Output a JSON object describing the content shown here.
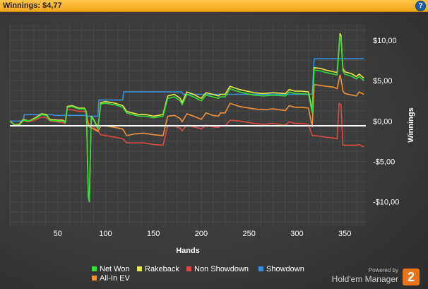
{
  "titlebar": {
    "label": "Winnings:",
    "value": "$4,77",
    "help_icon": "?"
  },
  "chart_data": {
    "type": "line",
    "xlabel": "Hands",
    "ylabel": "Winnings",
    "xlim": [
      0,
      372
    ],
    "ylim": [
      -13,
      12
    ],
    "grid": true,
    "legend_position": "bottom",
    "x_ticks": [
      "50",
      "100",
      "150",
      "200",
      "250",
      "300",
      "350"
    ],
    "y_ticks": [
      "$10,00",
      "$5,00",
      "$0,00",
      "-$5,00",
      "-$10,00"
    ],
    "x_tick_values": [
      50,
      100,
      150,
      200,
      250,
      300,
      350
    ],
    "y_tick_values": [
      10,
      5,
      0,
      -5,
      -10
    ],
    "series": [
      {
        "name": "Net Won",
        "color": "#33dd33",
        "points": [
          [
            0,
            0
          ],
          [
            5,
            -0.5
          ],
          [
            10,
            -0.5
          ],
          [
            14,
            0.1
          ],
          [
            20,
            0
          ],
          [
            28,
            0.4
          ],
          [
            33,
            0.8
          ],
          [
            38,
            0.7
          ],
          [
            42,
            0.1
          ],
          [
            50,
            0
          ],
          [
            55,
            0
          ],
          [
            58,
            -0.2
          ],
          [
            60,
            1.7
          ],
          [
            65,
            1.8
          ],
          [
            72,
            1.5
          ],
          [
            78,
            1.5
          ],
          [
            80,
            1.0
          ],
          [
            82,
            -9.5
          ],
          [
            83,
            -10
          ],
          [
            85,
            0.5
          ],
          [
            88,
            0
          ],
          [
            90,
            -0.5
          ],
          [
            92,
            -1
          ],
          [
            95,
            2.1
          ],
          [
            100,
            2.2
          ],
          [
            110,
            2.0
          ],
          [
            118,
            1.7
          ],
          [
            122,
            1.0
          ],
          [
            128,
            0.8
          ],
          [
            135,
            0.6
          ],
          [
            142,
            0.6
          ],
          [
            150,
            0.4
          ],
          [
            155,
            0.5
          ],
          [
            160,
            0.6
          ],
          [
            165,
            2.8
          ],
          [
            172,
            3.0
          ],
          [
            178,
            2.5
          ],
          [
            180,
            2.0
          ],
          [
            185,
            3.3
          ],
          [
            192,
            3.0
          ],
          [
            198,
            2.6
          ],
          [
            200,
            2.5
          ],
          [
            205,
            3.2
          ],
          [
            212,
            3.0
          ],
          [
            218,
            2.8
          ],
          [
            220,
            3.0
          ],
          [
            225,
            3.0
          ],
          [
            230,
            4.0
          ],
          [
            240,
            3.6
          ],
          [
            255,
            3.2
          ],
          [
            265,
            3.1
          ],
          [
            275,
            3.2
          ],
          [
            288,
            3.1
          ],
          [
            292,
            3.6
          ],
          [
            298,
            3.4
          ],
          [
            305,
            3.4
          ],
          [
            312,
            3.3
          ],
          [
            316,
            1.0
          ],
          [
            318,
            6.3
          ],
          [
            325,
            6.2
          ],
          [
            330,
            6.0
          ],
          [
            338,
            5.8
          ],
          [
            342,
            5.7
          ],
          [
            345,
            10.5
          ],
          [
            346,
            10.3
          ],
          [
            348,
            6.2
          ],
          [
            350,
            5.8
          ],
          [
            358,
            5.5
          ],
          [
            362,
            5.2
          ],
          [
            365,
            5.5
          ],
          [
            370,
            5.0
          ]
        ]
      },
      {
        "name": "Rakeback",
        "color": "#e8e84a",
        "points": [
          [
            0,
            0
          ],
          [
            5,
            -0.5
          ],
          [
            10,
            -0.4
          ],
          [
            14,
            0.2
          ],
          [
            20,
            0
          ],
          [
            28,
            0.5
          ],
          [
            33,
            0.9
          ],
          [
            38,
            0.8
          ],
          [
            42,
            0.2
          ],
          [
            50,
            0.1
          ],
          [
            55,
            0.1
          ],
          [
            58,
            -0.1
          ],
          [
            60,
            1.8
          ],
          [
            65,
            1.9
          ],
          [
            72,
            1.6
          ],
          [
            78,
            1.6
          ],
          [
            80,
            1.1
          ],
          [
            82,
            -9.4
          ],
          [
            83,
            -9.9
          ],
          [
            85,
            0.6
          ],
          [
            88,
            0.1
          ],
          [
            90,
            -0.4
          ],
          [
            92,
            -0.9
          ],
          [
            95,
            2.3
          ],
          [
            100,
            2.4
          ],
          [
            110,
            2.2
          ],
          [
            118,
            1.9
          ],
          [
            122,
            1.2
          ],
          [
            128,
            1.0
          ],
          [
            135,
            0.8
          ],
          [
            142,
            0.8
          ],
          [
            150,
            0.6
          ],
          [
            155,
            0.7
          ],
          [
            160,
            0.8
          ],
          [
            165,
            3.1
          ],
          [
            172,
            3.3
          ],
          [
            178,
            2.8
          ],
          [
            180,
            2.3
          ],
          [
            185,
            3.6
          ],
          [
            192,
            3.3
          ],
          [
            198,
            2.9
          ],
          [
            200,
            2.8
          ],
          [
            205,
            3.5
          ],
          [
            212,
            3.3
          ],
          [
            218,
            3.1
          ],
          [
            220,
            3.3
          ],
          [
            225,
            3.3
          ],
          [
            230,
            4.3
          ],
          [
            240,
            3.9
          ],
          [
            255,
            3.5
          ],
          [
            265,
            3.4
          ],
          [
            275,
            3.5
          ],
          [
            288,
            3.4
          ],
          [
            292,
            3.9
          ],
          [
            298,
            3.7
          ],
          [
            305,
            3.7
          ],
          [
            312,
            3.6
          ],
          [
            316,
            1.3
          ],
          [
            318,
            6.6
          ],
          [
            325,
            6.5
          ],
          [
            330,
            6.3
          ],
          [
            338,
            6.1
          ],
          [
            342,
            6.0
          ],
          [
            345,
            10.8
          ],
          [
            346,
            10.6
          ],
          [
            348,
            6.5
          ],
          [
            350,
            6.1
          ],
          [
            358,
            5.8
          ],
          [
            362,
            5.5
          ],
          [
            365,
            5.8
          ],
          [
            370,
            5.3
          ]
        ]
      },
      {
        "name": "Non Showdown",
        "color": "#e04848",
        "points": [
          [
            0,
            0
          ],
          [
            5,
            -0.4
          ],
          [
            10,
            -0.4
          ],
          [
            14,
            0
          ],
          [
            20,
            -0.1
          ],
          [
            28,
            0.2
          ],
          [
            33,
            0.5
          ],
          [
            38,
            0.4
          ],
          [
            42,
            0
          ],
          [
            50,
            -0.1
          ],
          [
            55,
            -0.2
          ],
          [
            58,
            -0.3
          ],
          [
            60,
            1.4
          ],
          [
            65,
            1.4
          ],
          [
            72,
            1.2
          ],
          [
            78,
            1.2
          ],
          [
            80,
            0.8
          ],
          [
            82,
            -0.3
          ],
          [
            84,
            -0.4
          ],
          [
            88,
            -0.8
          ],
          [
            92,
            -1.2
          ],
          [
            95,
            -1.7
          ],
          [
            100,
            -1.8
          ],
          [
            110,
            -2.0
          ],
          [
            118,
            -2.2
          ],
          [
            122,
            -2.7
          ],
          [
            130,
            -2.7
          ],
          [
            140,
            -2.7
          ],
          [
            150,
            -2.9
          ],
          [
            160,
            -3.0
          ],
          [
            165,
            -0.6
          ],
          [
            172,
            -0.6
          ],
          [
            178,
            -0.9
          ],
          [
            180,
            -1.2
          ],
          [
            185,
            -0.5
          ],
          [
            192,
            -0.7
          ],
          [
            198,
            -0.9
          ],
          [
            200,
            -1.0
          ],
          [
            205,
            -0.5
          ],
          [
            212,
            -0.7
          ],
          [
            218,
            -0.8
          ],
          [
            220,
            -0.6
          ],
          [
            225,
            -0.6
          ],
          [
            230,
            0.1
          ],
          [
            240,
            0
          ],
          [
            255,
            -0.3
          ],
          [
            265,
            -0.4
          ],
          [
            275,
            -0.3
          ],
          [
            288,
            -0.5
          ],
          [
            292,
            -0.1
          ],
          [
            298,
            -0.3
          ],
          [
            305,
            -0.3
          ],
          [
            312,
            -0.4
          ],
          [
            316,
            -1.8
          ],
          [
            318,
            -1.8
          ],
          [
            325,
            -1.9
          ],
          [
            330,
            -2.0
          ],
          [
            338,
            -2.1
          ],
          [
            342,
            -2.2
          ],
          [
            344,
            2.2
          ],
          [
            346,
            2.0
          ],
          [
            348,
            -3.0
          ],
          [
            350,
            -3.0
          ],
          [
            358,
            -3.0
          ],
          [
            362,
            -3.0
          ],
          [
            365,
            -2.9
          ],
          [
            370,
            -3.2
          ]
        ]
      },
      {
        "name": "Showdown",
        "color": "#3a8fd8",
        "points": [
          [
            0,
            0
          ],
          [
            14,
            0
          ],
          [
            15,
            0.8
          ],
          [
            45,
            0.8
          ],
          [
            46,
            0.7
          ],
          [
            78,
            0.7
          ],
          [
            80,
            0.6
          ],
          [
            92,
            0.6
          ],
          [
            93,
            2.6
          ],
          [
            118,
            2.6
          ],
          [
            119,
            3.6
          ],
          [
            180,
            3.6
          ],
          [
            181,
            3.3
          ],
          [
            315,
            3.3
          ],
          [
            316,
            3.4
          ],
          [
            318,
            7.7
          ],
          [
            370,
            7.7
          ]
        ]
      },
      {
        "name": "All-In EV",
        "color": "#f0923a",
        "points": [
          [
            0,
            0
          ],
          [
            5,
            -0.5
          ],
          [
            10,
            -0.5
          ],
          [
            14,
            0.1
          ],
          [
            20,
            0
          ],
          [
            28,
            0.4
          ],
          [
            33,
            0.8
          ],
          [
            38,
            0.7
          ],
          [
            42,
            0.1
          ],
          [
            50,
            0
          ],
          [
            55,
            0
          ],
          [
            58,
            -0.2
          ],
          [
            60,
            1.7
          ],
          [
            65,
            1.8
          ],
          [
            72,
            1.5
          ],
          [
            78,
            1.5
          ],
          [
            80,
            1.0
          ],
          [
            82,
            -0.5
          ],
          [
            84,
            -0.8
          ],
          [
            88,
            -1.0
          ],
          [
            92,
            -1.3
          ],
          [
            95,
            -0.6
          ],
          [
            100,
            -0.6
          ],
          [
            110,
            -0.8
          ],
          [
            118,
            -1.0
          ],
          [
            122,
            -1.8
          ],
          [
            130,
            -1.6
          ],
          [
            140,
            -1.5
          ],
          [
            150,
            -1.7
          ],
          [
            160,
            -1.8
          ],
          [
            165,
            0.6
          ],
          [
            172,
            0.7
          ],
          [
            178,
            0.3
          ],
          [
            180,
            -0.1
          ],
          [
            185,
            0.9
          ],
          [
            192,
            0.6
          ],
          [
            198,
            0.3
          ],
          [
            200,
            0.2
          ],
          [
            205,
            1.0
          ],
          [
            212,
            0.7
          ],
          [
            218,
            0.6
          ],
          [
            220,
            1.0
          ],
          [
            225,
            1.0
          ],
          [
            230,
            2.2
          ],
          [
            240,
            1.8
          ],
          [
            255,
            1.5
          ],
          [
            265,
            1.4
          ],
          [
            275,
            1.5
          ],
          [
            288,
            1.3
          ],
          [
            292,
            1.9
          ],
          [
            298,
            1.7
          ],
          [
            305,
            1.7
          ],
          [
            312,
            1.6
          ],
          [
            316,
            -0.7
          ],
          [
            318,
            4.5
          ],
          [
            325,
            4.4
          ],
          [
            330,
            4.3
          ],
          [
            338,
            4.2
          ],
          [
            342,
            4.0
          ],
          [
            345,
            5.7
          ],
          [
            346,
            5.2
          ],
          [
            348,
            3.7
          ],
          [
            350,
            3.4
          ],
          [
            358,
            3.2
          ],
          [
            362,
            3.1
          ],
          [
            365,
            3.6
          ],
          [
            370,
            3.3
          ]
        ]
      }
    ]
  },
  "legend": {
    "items": [
      {
        "label": "Net Won",
        "color": "#33dd33"
      },
      {
        "label": "Rakeback",
        "color": "#e8e84a"
      },
      {
        "label": "Non Showdown",
        "color": "#e04848"
      },
      {
        "label": "Showdown",
        "color": "#3a8fd8"
      },
      {
        "label": "All-In EV",
        "color": "#f0923a"
      }
    ]
  },
  "brand": {
    "powered_by": "Powered by",
    "name": "Hold'em Manager",
    "badge": "2"
  }
}
